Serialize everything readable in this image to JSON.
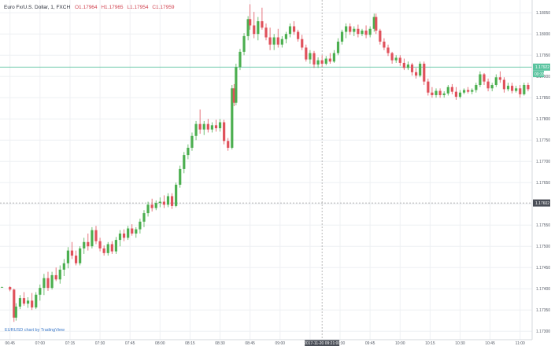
{
  "legend": {
    "symbol": "Euro Fx/U.S. Dollar, 1, FXCH",
    "open": "O1.17964",
    "high": "H1.17965",
    "low": "L1.17954",
    "close": "C1.17959",
    "symbol_color": "#2a2e39",
    "ohlc_color": "#d0424f"
  },
  "watermark": "EURUSD chart by TradingView",
  "colors": {
    "up": "#4caf50",
    "down": "#e0525c",
    "last_price_line": "#5bc4a0",
    "crosshair": "#9a9a9a",
    "grid": "#eef0f3",
    "axis_text": "#555b66"
  },
  "price_axis": {
    "ticks": [
      "1.18050",
      "1.18000",
      "1.17950",
      "1.17900",
      "1.17850",
      "1.17800",
      "1.17750",
      "1.17700",
      "1.17650",
      "1.17600",
      "1.17550",
      "1.17500",
      "1.17450",
      "1.17400",
      "1.17350",
      "1.17300"
    ]
  },
  "time_axis": {
    "ticks": [
      "06:45",
      "07:00",
      "07:15",
      "07:30",
      "07:45",
      "08:00",
      "08:15",
      "08:30",
      "08:45",
      "09:00",
      "09:15",
      "09:30",
      "09:45",
      "10:00",
      "10:15",
      "10:30",
      "10:45",
      "11:00"
    ],
    "crosshair_label": "2017-11-20 09:21:00"
  },
  "markers": {
    "last_price": "1.17922",
    "countdown": "00:33",
    "crosshair_price": "1.17602"
  },
  "chart_data": {
    "type": "candlestick",
    "title": "",
    "xlabel": "",
    "ylabel": "",
    "ylim": [
      1.1728,
      1.1808
    ],
    "xlim": [
      "06:40",
      "11:06"
    ],
    "grid": true,
    "last_price": 1.17922,
    "crosshair": {
      "time": "09:21",
      "price": 1.17602
    },
    "candles": [
      {
        "t": "06:41",
        "o": 1.17404,
        "h": 1.17405,
        "l": 1.17403,
        "c": 1.17404
      },
      {
        "t": "06:45",
        "o": 1.17404,
        "h": 1.17406,
        "l": 1.17394,
        "c": 1.17398
      },
      {
        "t": "06:47",
        "o": 1.17398,
        "h": 1.174,
        "l": 1.17322,
        "c": 1.17332
      },
      {
        "t": "06:48",
        "o": 1.17332,
        "h": 1.17366,
        "l": 1.17325,
        "c": 1.17358
      },
      {
        "t": "06:50",
        "o": 1.17358,
        "h": 1.17385,
        "l": 1.17352,
        "c": 1.17378
      },
      {
        "t": "06:52",
        "o": 1.17378,
        "h": 1.17392,
        "l": 1.1736,
        "c": 1.17365
      },
      {
        "t": "06:54",
        "o": 1.17365,
        "h": 1.1738,
        "l": 1.17355,
        "c": 1.17372
      },
      {
        "t": "06:56",
        "o": 1.17372,
        "h": 1.1739,
        "l": 1.1735,
        "c": 1.17356
      },
      {
        "t": "06:58",
        "o": 1.17356,
        "h": 1.17392,
        "l": 1.17352,
        "c": 1.17386
      },
      {
        "t": "07:00",
        "o": 1.17386,
        "h": 1.1741,
        "l": 1.17372,
        "c": 1.17402
      },
      {
        "t": "07:02",
        "o": 1.17402,
        "h": 1.17435,
        "l": 1.17385,
        "c": 1.17425
      },
      {
        "t": "07:04",
        "o": 1.17425,
        "h": 1.1744,
        "l": 1.17395,
        "c": 1.17402
      },
      {
        "t": "07:06",
        "o": 1.17402,
        "h": 1.1744,
        "l": 1.17398,
        "c": 1.17432
      },
      {
        "t": "07:08",
        "o": 1.17432,
        "h": 1.1745,
        "l": 1.17418,
        "c": 1.17422
      },
      {
        "t": "07:10",
        "o": 1.17422,
        "h": 1.17455,
        "l": 1.17412,
        "c": 1.17445
      },
      {
        "t": "07:12",
        "o": 1.17445,
        "h": 1.1747,
        "l": 1.1743,
        "c": 1.1746
      },
      {
        "t": "07:14",
        "o": 1.1746,
        "h": 1.17498,
        "l": 1.17448,
        "c": 1.1749
      },
      {
        "t": "07:16",
        "o": 1.1749,
        "h": 1.1751,
        "l": 1.1747,
        "c": 1.17478
      },
      {
        "t": "07:18",
        "o": 1.17478,
        "h": 1.1749,
        "l": 1.17455,
        "c": 1.1746
      },
      {
        "t": "07:20",
        "o": 1.1746,
        "h": 1.175,
        "l": 1.17455,
        "c": 1.17495
      },
      {
        "t": "07:22",
        "o": 1.17495,
        "h": 1.1752,
        "l": 1.17482,
        "c": 1.1751
      },
      {
        "t": "07:24",
        "o": 1.1751,
        "h": 1.1753,
        "l": 1.1749,
        "c": 1.175
      },
      {
        "t": "07:26",
        "o": 1.175,
        "h": 1.17545,
        "l": 1.17495,
        "c": 1.17538
      },
      {
        "t": "07:28",
        "o": 1.17538,
        "h": 1.17548,
        "l": 1.17505,
        "c": 1.17512
      },
      {
        "t": "07:30",
        "o": 1.17512,
        "h": 1.1752,
        "l": 1.17488,
        "c": 1.17495
      },
      {
        "t": "07:32",
        "o": 1.17495,
        "h": 1.17502,
        "l": 1.17478,
        "c": 1.17484
      },
      {
        "t": "07:34",
        "o": 1.17484,
        "h": 1.1751,
        "l": 1.17478,
        "c": 1.17505
      },
      {
        "t": "07:36",
        "o": 1.17505,
        "h": 1.17512,
        "l": 1.17482,
        "c": 1.17488
      },
      {
        "t": "07:38",
        "o": 1.17488,
        "h": 1.17522,
        "l": 1.17482,
        "c": 1.17515
      },
      {
        "t": "07:40",
        "o": 1.17515,
        "h": 1.17538,
        "l": 1.175,
        "c": 1.1753
      },
      {
        "t": "07:42",
        "o": 1.1753,
        "h": 1.1754,
        "l": 1.17512,
        "c": 1.1752
      },
      {
        "t": "07:44",
        "o": 1.1752,
        "h": 1.17548,
        "l": 1.17515,
        "c": 1.17542
      },
      {
        "t": "07:46",
        "o": 1.17542,
        "h": 1.17552,
        "l": 1.17525,
        "c": 1.1753
      },
      {
        "t": "07:48",
        "o": 1.1753,
        "h": 1.17545,
        "l": 1.1752,
        "c": 1.1754
      },
      {
        "t": "07:50",
        "o": 1.1754,
        "h": 1.17565,
        "l": 1.1753,
        "c": 1.17558
      },
      {
        "t": "07:52",
        "o": 1.17558,
        "h": 1.17585,
        "l": 1.17545,
        "c": 1.17578
      },
      {
        "t": "07:54",
        "o": 1.17578,
        "h": 1.17605,
        "l": 1.1757,
        "c": 1.17598
      },
      {
        "t": "07:56",
        "o": 1.17598,
        "h": 1.17612,
        "l": 1.17582,
        "c": 1.1759
      },
      {
        "t": "07:58",
        "o": 1.1759,
        "h": 1.17608,
        "l": 1.17585,
        "c": 1.17602
      },
      {
        "t": "08:00",
        "o": 1.17602,
        "h": 1.17615,
        "l": 1.17592,
        "c": 1.17605
      },
      {
        "t": "08:02",
        "o": 1.17605,
        "h": 1.1762,
        "l": 1.1759,
        "c": 1.17598
      },
      {
        "t": "08:04",
        "o": 1.17598,
        "h": 1.17625,
        "l": 1.17592,
        "c": 1.17618
      },
      {
        "t": "08:06",
        "o": 1.17618,
        "h": 1.17625,
        "l": 1.17588,
        "c": 1.17595
      },
      {
        "t": "08:08",
        "o": 1.17595,
        "h": 1.1765,
        "l": 1.17592,
        "c": 1.17645
      },
      {
        "t": "08:10",
        "o": 1.17645,
        "h": 1.1769,
        "l": 1.17638,
        "c": 1.17682
      },
      {
        "t": "08:12",
        "o": 1.17682,
        "h": 1.17722,
        "l": 1.17672,
        "c": 1.17715
      },
      {
        "t": "08:14",
        "o": 1.17715,
        "h": 1.1774,
        "l": 1.17705,
        "c": 1.17732
      },
      {
        "t": "08:16",
        "o": 1.17732,
        "h": 1.17768,
        "l": 1.17725,
        "c": 1.1776
      },
      {
        "t": "08:18",
        "o": 1.1776,
        "h": 1.17795,
        "l": 1.1775,
        "c": 1.17788
      },
      {
        "t": "08:20",
        "o": 1.17788,
        "h": 1.17822,
        "l": 1.17765,
        "c": 1.17775
      },
      {
        "t": "08:22",
        "o": 1.17775,
        "h": 1.17795,
        "l": 1.17762,
        "c": 1.17788
      },
      {
        "t": "08:24",
        "o": 1.17788,
        "h": 1.178,
        "l": 1.17768,
        "c": 1.17775
      },
      {
        "t": "08:26",
        "o": 1.17775,
        "h": 1.17792,
        "l": 1.17768,
        "c": 1.17785
      },
      {
        "t": "08:28",
        "o": 1.17785,
        "h": 1.17798,
        "l": 1.1777,
        "c": 1.17778
      },
      {
        "t": "08:30",
        "o": 1.17778,
        "h": 1.178,
        "l": 1.1777,
        "c": 1.17792
      },
      {
        "t": "08:32",
        "o": 1.17792,
        "h": 1.17798,
        "l": 1.1774,
        "c": 1.17748
      },
      {
        "t": "08:34",
        "o": 1.17748,
        "h": 1.17755,
        "l": 1.17725,
        "c": 1.17732
      },
      {
        "t": "08:36",
        "o": 1.17732,
        "h": 1.1788,
        "l": 1.17728,
        "c": 1.17872
      },
      {
        "t": "08:37",
        "o": 1.17872,
        "h": 1.17882,
        "l": 1.1783,
        "c": 1.17838
      },
      {
        "t": "08:38",
        "o": 1.17838,
        "h": 1.1793,
        "l": 1.17832,
        "c": 1.17922
      },
      {
        "t": "08:40",
        "o": 1.17922,
        "h": 1.17965,
        "l": 1.17915,
        "c": 1.17958
      },
      {
        "t": "08:42",
        "o": 1.17958,
        "h": 1.18002,
        "l": 1.1795,
        "c": 1.17995
      },
      {
        "t": "08:44",
        "o": 1.17995,
        "h": 1.18042,
        "l": 1.17985,
        "c": 1.18035
      },
      {
        "t": "08:45",
        "o": 1.18035,
        "h": 1.1807,
        "l": 1.1801,
        "c": 1.1802
      },
      {
        "t": "08:47",
        "o": 1.1802,
        "h": 1.18052,
        "l": 1.1799,
        "c": 1.18
      },
      {
        "t": "08:49",
        "o": 1.18,
        "h": 1.1804,
        "l": 1.17985,
        "c": 1.1803
      },
      {
        "t": "08:51",
        "o": 1.1803,
        "h": 1.18062,
        "l": 1.1801,
        "c": 1.18015
      },
      {
        "t": "08:53",
        "o": 1.18015,
        "h": 1.18025,
        "l": 1.17985,
        "c": 1.17992
      },
      {
        "t": "08:55",
        "o": 1.17992,
        "h": 1.18015,
        "l": 1.17962,
        "c": 1.17975
      },
      {
        "t": "08:57",
        "o": 1.17975,
        "h": 1.18,
        "l": 1.17962,
        "c": 1.17992
      },
      {
        "t": "08:59",
        "o": 1.17992,
        "h": 1.18012,
        "l": 1.17968,
        "c": 1.17975
      },
      {
        "t": "09:01",
        "o": 1.17975,
        "h": 1.17995,
        "l": 1.17968,
        "c": 1.17988
      },
      {
        "t": "09:03",
        "o": 1.17988,
        "h": 1.18005,
        "l": 1.17978,
        "c": 1.18
      },
      {
        "t": "09:05",
        "o": 1.18,
        "h": 1.18025,
        "l": 1.17992,
        "c": 1.18018
      },
      {
        "t": "09:07",
        "o": 1.18018,
        "h": 1.1803,
        "l": 1.17998,
        "c": 1.18005
      },
      {
        "t": "09:09",
        "o": 1.18005,
        "h": 1.1801,
        "l": 1.17982,
        "c": 1.17988
      },
      {
        "t": "09:11",
        "o": 1.17988,
        "h": 1.17998,
        "l": 1.17962,
        "c": 1.17968
      },
      {
        "t": "09:13",
        "o": 1.17968,
        "h": 1.17975,
        "l": 1.17935,
        "c": 1.1794
      },
      {
        "t": "09:15",
        "o": 1.1794,
        "h": 1.17962,
        "l": 1.1793,
        "c": 1.17955
      },
      {
        "t": "09:17",
        "o": 1.17955,
        "h": 1.1796,
        "l": 1.1792,
        "c": 1.17928
      },
      {
        "t": "09:19",
        "o": 1.17928,
        "h": 1.17945,
        "l": 1.1792,
        "c": 1.17938
      },
      {
        "t": "09:21",
        "o": 1.17938,
        "h": 1.1795,
        "l": 1.17922,
        "c": 1.1793
      },
      {
        "t": "09:23",
        "o": 1.1793,
        "h": 1.17948,
        "l": 1.17926,
        "c": 1.17942
      },
      {
        "t": "09:25",
        "o": 1.17942,
        "h": 1.17955,
        "l": 1.1793,
        "c": 1.17935
      },
      {
        "t": "09:27",
        "o": 1.17935,
        "h": 1.17962,
        "l": 1.17932,
        "c": 1.17955
      },
      {
        "t": "09:29",
        "o": 1.17955,
        "h": 1.1799,
        "l": 1.1795,
        "c": 1.17982
      },
      {
        "t": "09:31",
        "o": 1.17982,
        "h": 1.1801,
        "l": 1.17975,
        "c": 1.18005
      },
      {
        "t": "09:33",
        "o": 1.18005,
        "h": 1.18025,
        "l": 1.1799,
        "c": 1.18018
      },
      {
        "t": "09:35",
        "o": 1.18018,
        "h": 1.18025,
        "l": 1.17998,
        "c": 1.18005
      },
      {
        "t": "09:37",
        "o": 1.18005,
        "h": 1.18018,
        "l": 1.17995,
        "c": 1.18012
      },
      {
        "t": "09:39",
        "o": 1.18012,
        "h": 1.18022,
        "l": 1.17992,
        "c": 1.18
      },
      {
        "t": "09:41",
        "o": 1.18,
        "h": 1.18012,
        "l": 1.17995,
        "c": 1.18008
      },
      {
        "t": "09:43",
        "o": 1.18008,
        "h": 1.1802,
        "l": 1.1799,
        "c": 1.17998
      },
      {
        "t": "09:45",
        "o": 1.17998,
        "h": 1.18018,
        "l": 1.17992,
        "c": 1.18012
      },
      {
        "t": "09:47",
        "o": 1.18012,
        "h": 1.18048,
        "l": 1.18005,
        "c": 1.1804
      },
      {
        "t": "09:48",
        "o": 1.1804,
        "h": 1.18048,
        "l": 1.18,
        "c": 1.18008
      },
      {
        "t": "09:50",
        "o": 1.18008,
        "h": 1.18012,
        "l": 1.17975,
        "c": 1.17982
      },
      {
        "t": "09:52",
        "o": 1.17982,
        "h": 1.1799,
        "l": 1.17962,
        "c": 1.17968
      },
      {
        "t": "09:54",
        "o": 1.17968,
        "h": 1.17975,
        "l": 1.17948,
        "c": 1.17955
      },
      {
        "t": "09:56",
        "o": 1.17955,
        "h": 1.17958,
        "l": 1.1793,
        "c": 1.17938
      },
      {
        "t": "09:58",
        "o": 1.17938,
        "h": 1.1795,
        "l": 1.17932,
        "c": 1.17944
      },
      {
        "t": "10:00",
        "o": 1.17944,
        "h": 1.1795,
        "l": 1.17925,
        "c": 1.17932
      },
      {
        "t": "10:02",
        "o": 1.17932,
        "h": 1.17942,
        "l": 1.17915,
        "c": 1.1792
      },
      {
        "t": "10:04",
        "o": 1.1792,
        "h": 1.17935,
        "l": 1.17915,
        "c": 1.17928
      },
      {
        "t": "10:06",
        "o": 1.17928,
        "h": 1.17932,
        "l": 1.17902,
        "c": 1.1791
      },
      {
        "t": "10:08",
        "o": 1.1791,
        "h": 1.1792,
        "l": 1.17895,
        "c": 1.17902
      },
      {
        "t": "10:10",
        "o": 1.17902,
        "h": 1.17935,
        "l": 1.17898,
        "c": 1.1793
      },
      {
        "t": "10:12",
        "o": 1.1793,
        "h": 1.17935,
        "l": 1.1788,
        "c": 1.17888
      },
      {
        "t": "10:14",
        "o": 1.17888,
        "h": 1.17895,
        "l": 1.17855,
        "c": 1.17862
      },
      {
        "t": "10:16",
        "o": 1.17862,
        "h": 1.17875,
        "l": 1.1785,
        "c": 1.17856
      },
      {
        "t": "10:18",
        "o": 1.17856,
        "h": 1.17872,
        "l": 1.1785,
        "c": 1.17866
      },
      {
        "t": "10:20",
        "o": 1.17866,
        "h": 1.17872,
        "l": 1.1785,
        "c": 1.17856
      },
      {
        "t": "10:22",
        "o": 1.17856,
        "h": 1.17865,
        "l": 1.1785,
        "c": 1.1786
      },
      {
        "t": "10:24",
        "o": 1.1786,
        "h": 1.1788,
        "l": 1.17855,
        "c": 1.17875
      },
      {
        "t": "10:26",
        "o": 1.17875,
        "h": 1.17882,
        "l": 1.17858,
        "c": 1.17864
      },
      {
        "t": "10:28",
        "o": 1.17864,
        "h": 1.17875,
        "l": 1.17845,
        "c": 1.17852
      },
      {
        "t": "10:30",
        "o": 1.17852,
        "h": 1.17868,
        "l": 1.17848,
        "c": 1.17862
      },
      {
        "t": "10:32",
        "o": 1.17862,
        "h": 1.17872,
        "l": 1.17858,
        "c": 1.17868
      },
      {
        "t": "10:34",
        "o": 1.17868,
        "h": 1.17875,
        "l": 1.1786,
        "c": 1.17864
      },
      {
        "t": "10:36",
        "o": 1.17864,
        "h": 1.17872,
        "l": 1.17858,
        "c": 1.17868
      },
      {
        "t": "10:38",
        "o": 1.17868,
        "h": 1.17885,
        "l": 1.17862,
        "c": 1.1788
      },
      {
        "t": "10:40",
        "o": 1.1788,
        "h": 1.17912,
        "l": 1.17875,
        "c": 1.17905
      },
      {
        "t": "10:42",
        "o": 1.17905,
        "h": 1.17908,
        "l": 1.1788,
        "c": 1.17888
      },
      {
        "t": "10:44",
        "o": 1.17888,
        "h": 1.17895,
        "l": 1.17865,
        "c": 1.17872
      },
      {
        "t": "10:46",
        "o": 1.17872,
        "h": 1.17885,
        "l": 1.17865,
        "c": 1.1788
      },
      {
        "t": "10:48",
        "o": 1.1788,
        "h": 1.17905,
        "l": 1.17875,
        "c": 1.17898
      },
      {
        "t": "10:50",
        "o": 1.17898,
        "h": 1.17912,
        "l": 1.17885,
        "c": 1.17892
      },
      {
        "t": "10:52",
        "o": 1.17892,
        "h": 1.17898,
        "l": 1.17862,
        "c": 1.1787
      },
      {
        "t": "10:54",
        "o": 1.1787,
        "h": 1.17885,
        "l": 1.17865,
        "c": 1.17878
      },
      {
        "t": "10:56",
        "o": 1.17878,
        "h": 1.17885,
        "l": 1.1786,
        "c": 1.17866
      },
      {
        "t": "10:58",
        "o": 1.17866,
        "h": 1.17878,
        "l": 1.17862,
        "c": 1.17872
      },
      {
        "t": "11:00",
        "o": 1.17872,
        "h": 1.1788,
        "l": 1.1785,
        "c": 1.17858
      },
      {
        "t": "11:02",
        "o": 1.17858,
        "h": 1.17885,
        "l": 1.17855,
        "c": 1.1788
      },
      {
        "t": "11:04",
        "o": 1.1788,
        "h": 1.17885,
        "l": 1.17865,
        "c": 1.1787
      }
    ]
  }
}
